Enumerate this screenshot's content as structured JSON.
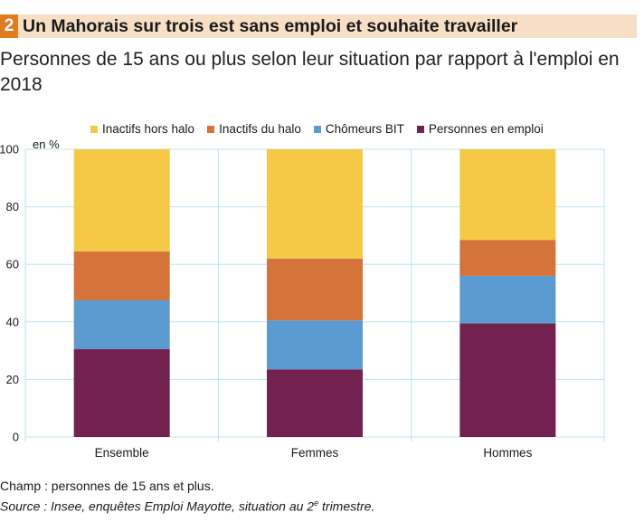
{
  "header": {
    "number": "2",
    "title": "Un Mahorais sur trois est sans emploi et souhaite travailler",
    "subtitle": "Personnes de 15 ans ou plus selon leur situation par rapport à l'emploi en 2018"
  },
  "chart_data": {
    "type": "bar",
    "stacked": true,
    "unit_label": "en %",
    "categories": [
      "Ensemble",
      "Femmes",
      "Hommes"
    ],
    "series": [
      {
        "name": "Personnes en emploi",
        "color": "#73214f",
        "values": [
          30.5,
          23.5,
          39.5
        ]
      },
      {
        "name": "Chômeurs BIT",
        "color": "#5b9bd1",
        "values": [
          17,
          17,
          16.5
        ]
      },
      {
        "name": "Inactifs du halo",
        "color": "#d4733a",
        "values": [
          17,
          21.5,
          12.5
        ]
      },
      {
        "name": "Inactifs hors halo",
        "color": "#f5c945",
        "values": [
          35.5,
          38,
          31.5
        ]
      }
    ],
    "legend_order": [
      "Inactifs hors halo",
      "Inactifs du halo",
      "Chômeurs BIT",
      "Personnes en emploi"
    ],
    "ylim": [
      0,
      100
    ],
    "yticks": [
      0,
      20,
      40,
      60,
      80,
      100
    ],
    "grid": true,
    "grid_color": "#b8e6ef",
    "legend_position": "top"
  },
  "footer": {
    "note": "Champ : personnes de 15 ans et plus.",
    "source_prefix": "Source : Insee, enquêtes Emploi Mayotte, situation au 2",
    "source_sup": "e",
    "source_suffix": " trimestre."
  }
}
